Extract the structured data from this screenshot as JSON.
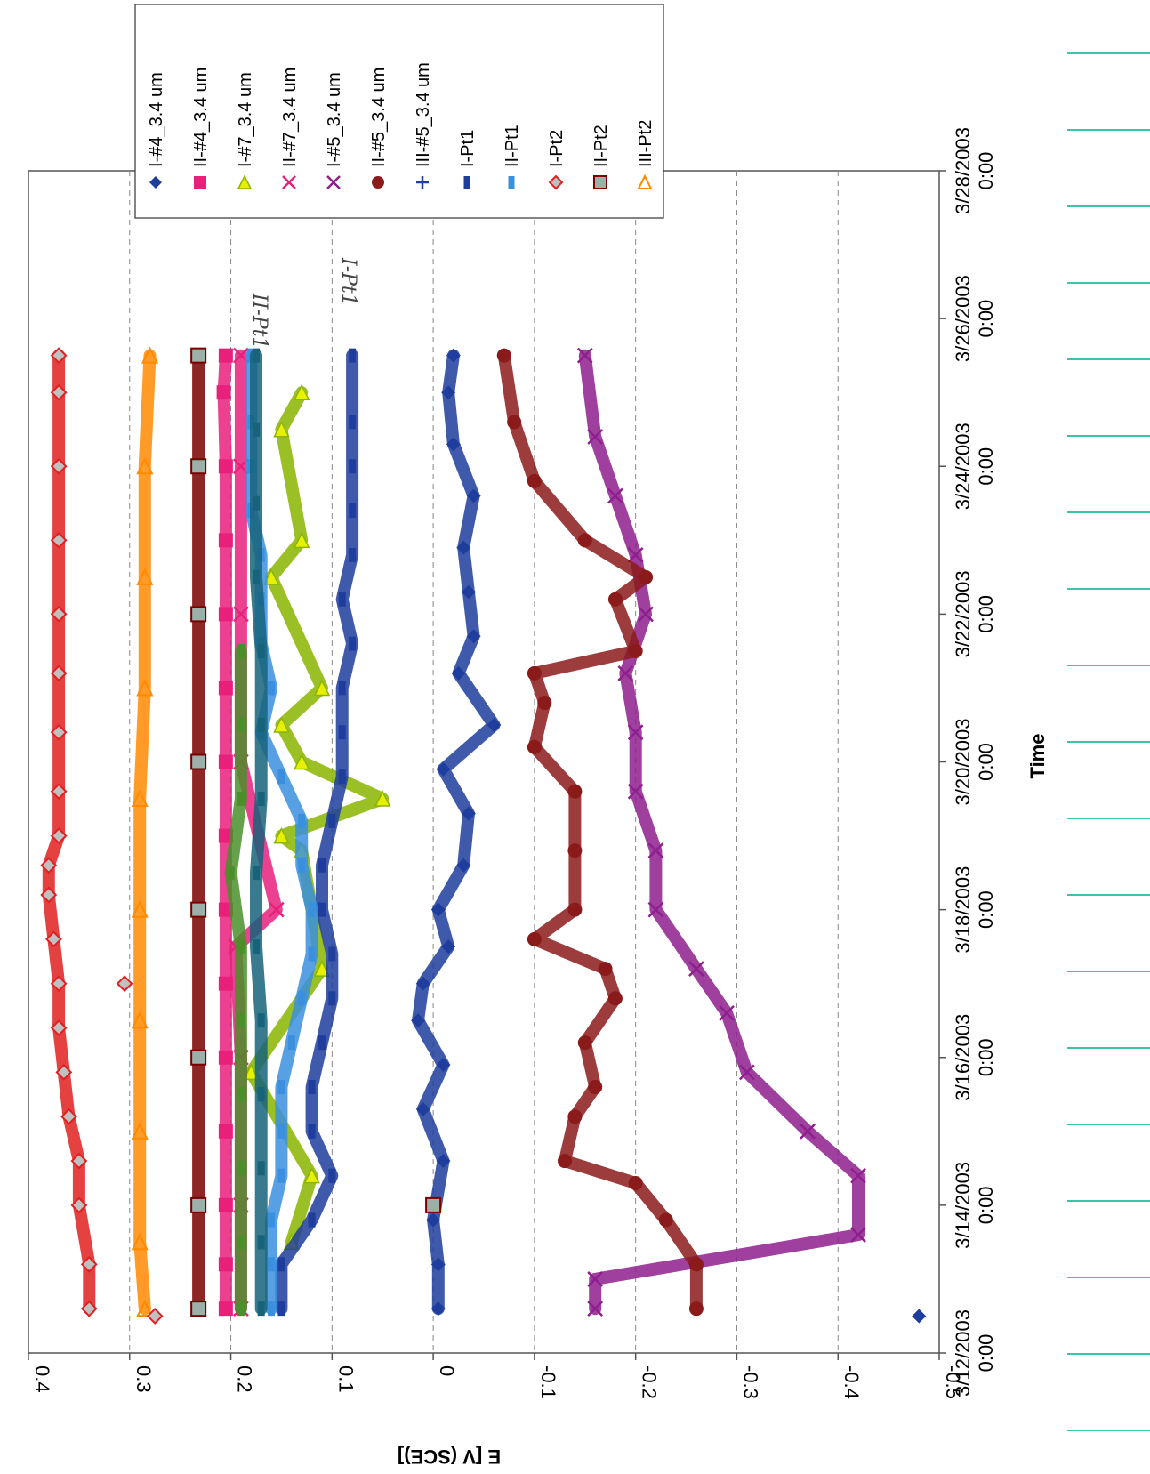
{
  "chart_data": {
    "type": "scatter",
    "orientation": "rotated-90-clockwise",
    "xlabel": "Time",
    "ylabel": "E [V (SCE)]",
    "ylim": [
      -0.5,
      0.4
    ],
    "y_ticks": [
      0.4,
      0.3,
      0.2,
      0.1,
      0,
      -0.1,
      -0.2,
      -0.3,
      -0.4,
      -0.5
    ],
    "y_tick_labels": [
      "0.4",
      "0.3",
      "0.2",
      "0.1",
      "0",
      "-0.1",
      "-0.2",
      "-0.3",
      "-0.4",
      "-0.5"
    ],
    "x_ticks": [
      0,
      2,
      4,
      6,
      8,
      10,
      12,
      14,
      16
    ],
    "x_tick_labels": [
      [
        "3/12/2003",
        "0:00"
      ],
      [
        "3/14/2003",
        "0:00"
      ],
      [
        "3/16/2003",
        "0:00"
      ],
      [
        "3/18/2003",
        "0:00"
      ],
      [
        "3/20/2003",
        "0:00"
      ],
      [
        "3/22/2003",
        "0:00"
      ],
      [
        "3/24/2003",
        "0:00"
      ],
      [
        "3/26/2003",
        "0:00"
      ],
      [
        "3/28/2003",
        "0:00"
      ]
    ],
    "xlim_days": [
      0,
      16
    ],
    "grid": "horizontal dashed",
    "legend_position": "top-right",
    "series": [
      {
        "name": "I-#4_3.4 um",
        "color": "#1f3d9c",
        "marker": "diamond",
        "x": [
          0.6,
          1.2,
          1.8,
          2.6,
          3.3,
          3.9,
          4.5,
          5.0,
          5.5,
          6.0,
          6.6,
          7.3,
          7.9,
          8.5,
          9.2,
          9.7,
          10.3,
          10.9,
          11.6,
          12.3,
          13.0,
          13.5
        ],
        "y": [
          -0.005,
          -0.005,
          0.0,
          -0.01,
          0.01,
          -0.01,
          0.015,
          0.01,
          -0.015,
          -0.005,
          -0.03,
          -0.035,
          -0.01,
          -0.06,
          -0.025,
          -0.04,
          -0.035,
          -0.03,
          -0.04,
          -0.02,
          -0.015,
          -0.02
        ]
      },
      {
        "name": "II-#4_3.4 um",
        "color": "#e8207c",
        "marker": "square",
        "x": [
          0.6,
          1.2,
          2.0,
          3.0,
          4.0,
          5.0,
          6.0,
          7.0,
          8.0,
          9.0,
          10.0,
          11.0,
          12.0,
          13.0,
          13.5
        ],
        "y": [
          0.205,
          0.205,
          0.205,
          0.205,
          0.205,
          0.205,
          0.205,
          0.205,
          0.205,
          0.205,
          0.205,
          0.205,
          0.205,
          0.207,
          0.205
        ]
      },
      {
        "name": "I-#7_3.4 um",
        "color": "#8ab500",
        "marker": "triangle",
        "x": [
          1.5,
          2.4,
          3.8,
          5.2,
          6.8,
          7.0,
          7.5,
          8.0,
          8.5,
          9.0,
          10.5,
          11.0,
          12.5,
          13.0
        ],
        "y": [
          0.14,
          0.12,
          0.18,
          0.11,
          0.13,
          0.15,
          0.05,
          0.13,
          0.15,
          0.11,
          0.16,
          0.13,
          0.15,
          0.13
        ]
      },
      {
        "name": "II-#7_3.4 um",
        "color": "#e8207c",
        "marker": "x",
        "x": [
          0.6,
          2.0,
          4.0,
          5.5,
          6.0,
          8.0,
          10.0,
          12.0,
          13.5
        ],
        "y": [
          0.19,
          0.19,
          0.19,
          0.195,
          0.155,
          0.19,
          0.19,
          0.19,
          0.19
        ]
      },
      {
        "name": "I-#5_3.4 um",
        "color": "#8e1f8e",
        "marker": "x",
        "x": [
          0.6,
          1.0,
          1.6,
          2.4,
          3.0,
          3.8,
          4.6,
          5.2,
          6.0,
          6.8,
          7.6,
          8.4,
          9.2,
          10.0,
          10.8,
          11.6,
          12.4,
          13.5
        ],
        "y": [
          -0.16,
          -0.16,
          -0.42,
          -0.42,
          -0.37,
          -0.31,
          -0.29,
          -0.26,
          -0.22,
          -0.22,
          -0.2,
          -0.2,
          -0.19,
          -0.21,
          -0.2,
          -0.18,
          -0.16,
          -0.15
        ]
      },
      {
        "name": "II-#5_3.4 um",
        "color": "#8b1a1a",
        "marker": "circle",
        "x": [
          0.6,
          1.2,
          1.8,
          2.3,
          2.6,
          3.2,
          3.6,
          4.2,
          4.8,
          5.2,
          5.6,
          6.0,
          6.8,
          7.6,
          8.2,
          8.8,
          9.2,
          9.5,
          10.2,
          10.5,
          11.0,
          11.8,
          12.6,
          13.5
        ],
        "y": [
          -0.26,
          -0.26,
          -0.23,
          -0.2,
          -0.13,
          -0.14,
          -0.16,
          -0.15,
          -0.18,
          -0.17,
          -0.1,
          -0.14,
          -0.14,
          -0.14,
          -0.1,
          -0.11,
          -0.1,
          -0.2,
          -0.18,
          -0.21,
          -0.15,
          -0.1,
          -0.08,
          -0.07
        ]
      },
      {
        "name": "III-#5_3.4 um",
        "color": "#1f3d9c",
        "marker": "plus",
        "x": [],
        "y": []
      },
      {
        "name": "I-Pt1",
        "color": "#1f3d9c",
        "marker": "dash",
        "x": [
          0.6,
          1.2,
          1.8,
          2.4,
          3.0,
          3.6,
          4.2,
          4.8,
          5.4,
          6.0,
          6.6,
          7.2,
          7.8,
          8.4,
          9.0,
          9.6,
          10.2,
          10.8,
          11.4,
          12.0,
          12.6,
          13.5
        ],
        "y": [
          0.15,
          0.15,
          0.12,
          0.1,
          0.12,
          0.12,
          0.11,
          0.1,
          0.1,
          0.11,
          0.11,
          0.1,
          0.09,
          0.09,
          0.09,
          0.08,
          0.09,
          0.08,
          0.08,
          0.08,
          0.08,
          0.08
        ]
      },
      {
        "name": "II-Pt1",
        "color": "#3a8fde",
        "marker": "dash",
        "x": [
          0.6,
          1.2,
          1.8,
          2.4,
          3.0,
          3.6,
          4.2,
          4.8,
          5.4,
          6.0,
          6.6,
          7.2,
          7.8,
          8.4,
          9.0,
          9.6,
          10.2,
          10.8,
          11.4,
          12.0,
          12.6,
          13.5
        ],
        "y": [
          0.16,
          0.16,
          0.16,
          0.15,
          0.15,
          0.15,
          0.14,
          0.13,
          0.12,
          0.12,
          0.13,
          0.13,
          0.15,
          0.17,
          0.16,
          0.17,
          0.17,
          0.17,
          0.18,
          0.18,
          0.18,
          0.18
        ]
      },
      {
        "name": "I-Pt2",
        "color": "#e02020",
        "marker": "diamond-open",
        "x": [
          0.6,
          1.2,
          2.0,
          2.6,
          3.2,
          3.8,
          4.4,
          5.0,
          5.6,
          6.2,
          6.6,
          7.0,
          7.6,
          8.4,
          9.2,
          10.0,
          11.0,
          12.0,
          13.0,
          13.5
        ],
        "y": [
          0.34,
          0.34,
          0.35,
          0.35,
          0.36,
          0.365,
          0.37,
          0.37,
          0.375,
          0.38,
          0.38,
          0.37,
          0.37,
          0.37,
          0.37,
          0.37,
          0.37,
          0.37,
          0.37,
          0.37
        ]
      },
      {
        "name": "II-Pt2",
        "color": "#7a0000",
        "marker": "square-open",
        "x": [
          0.6,
          2.0,
          4.0,
          6.0,
          8.0,
          10.0,
          12.0,
          13.5
        ],
        "y": [
          0.232,
          0.232,
          0.232,
          0.232,
          0.232,
          0.232,
          0.232,
          0.232
        ]
      },
      {
        "name": "III-Pt2",
        "color": "#ff8a00",
        "marker": "triangle-open",
        "x": [
          0.6,
          1.5,
          3.0,
          4.5,
          6.0,
          7.5,
          9.0,
          10.5,
          12.0,
          13.5
        ],
        "y": [
          0.285,
          0.29,
          0.29,
          0.29,
          0.29,
          0.29,
          0.285,
          0.285,
          0.285,
          0.28
        ]
      },
      {
        "name": "",
        "color": "#16637a",
        "marker": "dash",
        "x": [
          0.6,
          1.5,
          2.5,
          3.5,
          4.5,
          5.5,
          6.5,
          7.5,
          8.5,
          9.5,
          10.5,
          11.5,
          12.5,
          13.5
        ],
        "y": [
          0.17,
          0.17,
          0.17,
          0.17,
          0.17,
          0.175,
          0.175,
          0.17,
          0.17,
          0.17,
          0.175,
          0.175,
          0.175,
          0.175
        ]
      },
      {
        "name": "",
        "color": "#4a8f2a",
        "marker": "dash",
        "x": [
          0.6,
          1.5,
          2.5,
          3.5,
          4.5,
          5.5,
          6.5,
          7.5,
          8.5,
          9.5
        ],
        "y": [
          0.19,
          0.19,
          0.19,
          0.19,
          0.19,
          0.19,
          0.2,
          0.19,
          0.19,
          0.19
        ]
      }
    ],
    "isolated_points": [
      {
        "series": "I-#4_3.4 um",
        "x": 0.5,
        "y": -0.48
      },
      {
        "series": "II-Pt2",
        "x": 2.0,
        "y": 0.0
      },
      {
        "series": "I-Pt2",
        "x": 5.0,
        "y": 0.305
      },
      {
        "series": "I-Pt2",
        "x": 0.5,
        "y": 0.275
      }
    ]
  },
  "annotations": {
    "note_upper": "II-Pt1",
    "note_lower": "I-Pt1"
  }
}
